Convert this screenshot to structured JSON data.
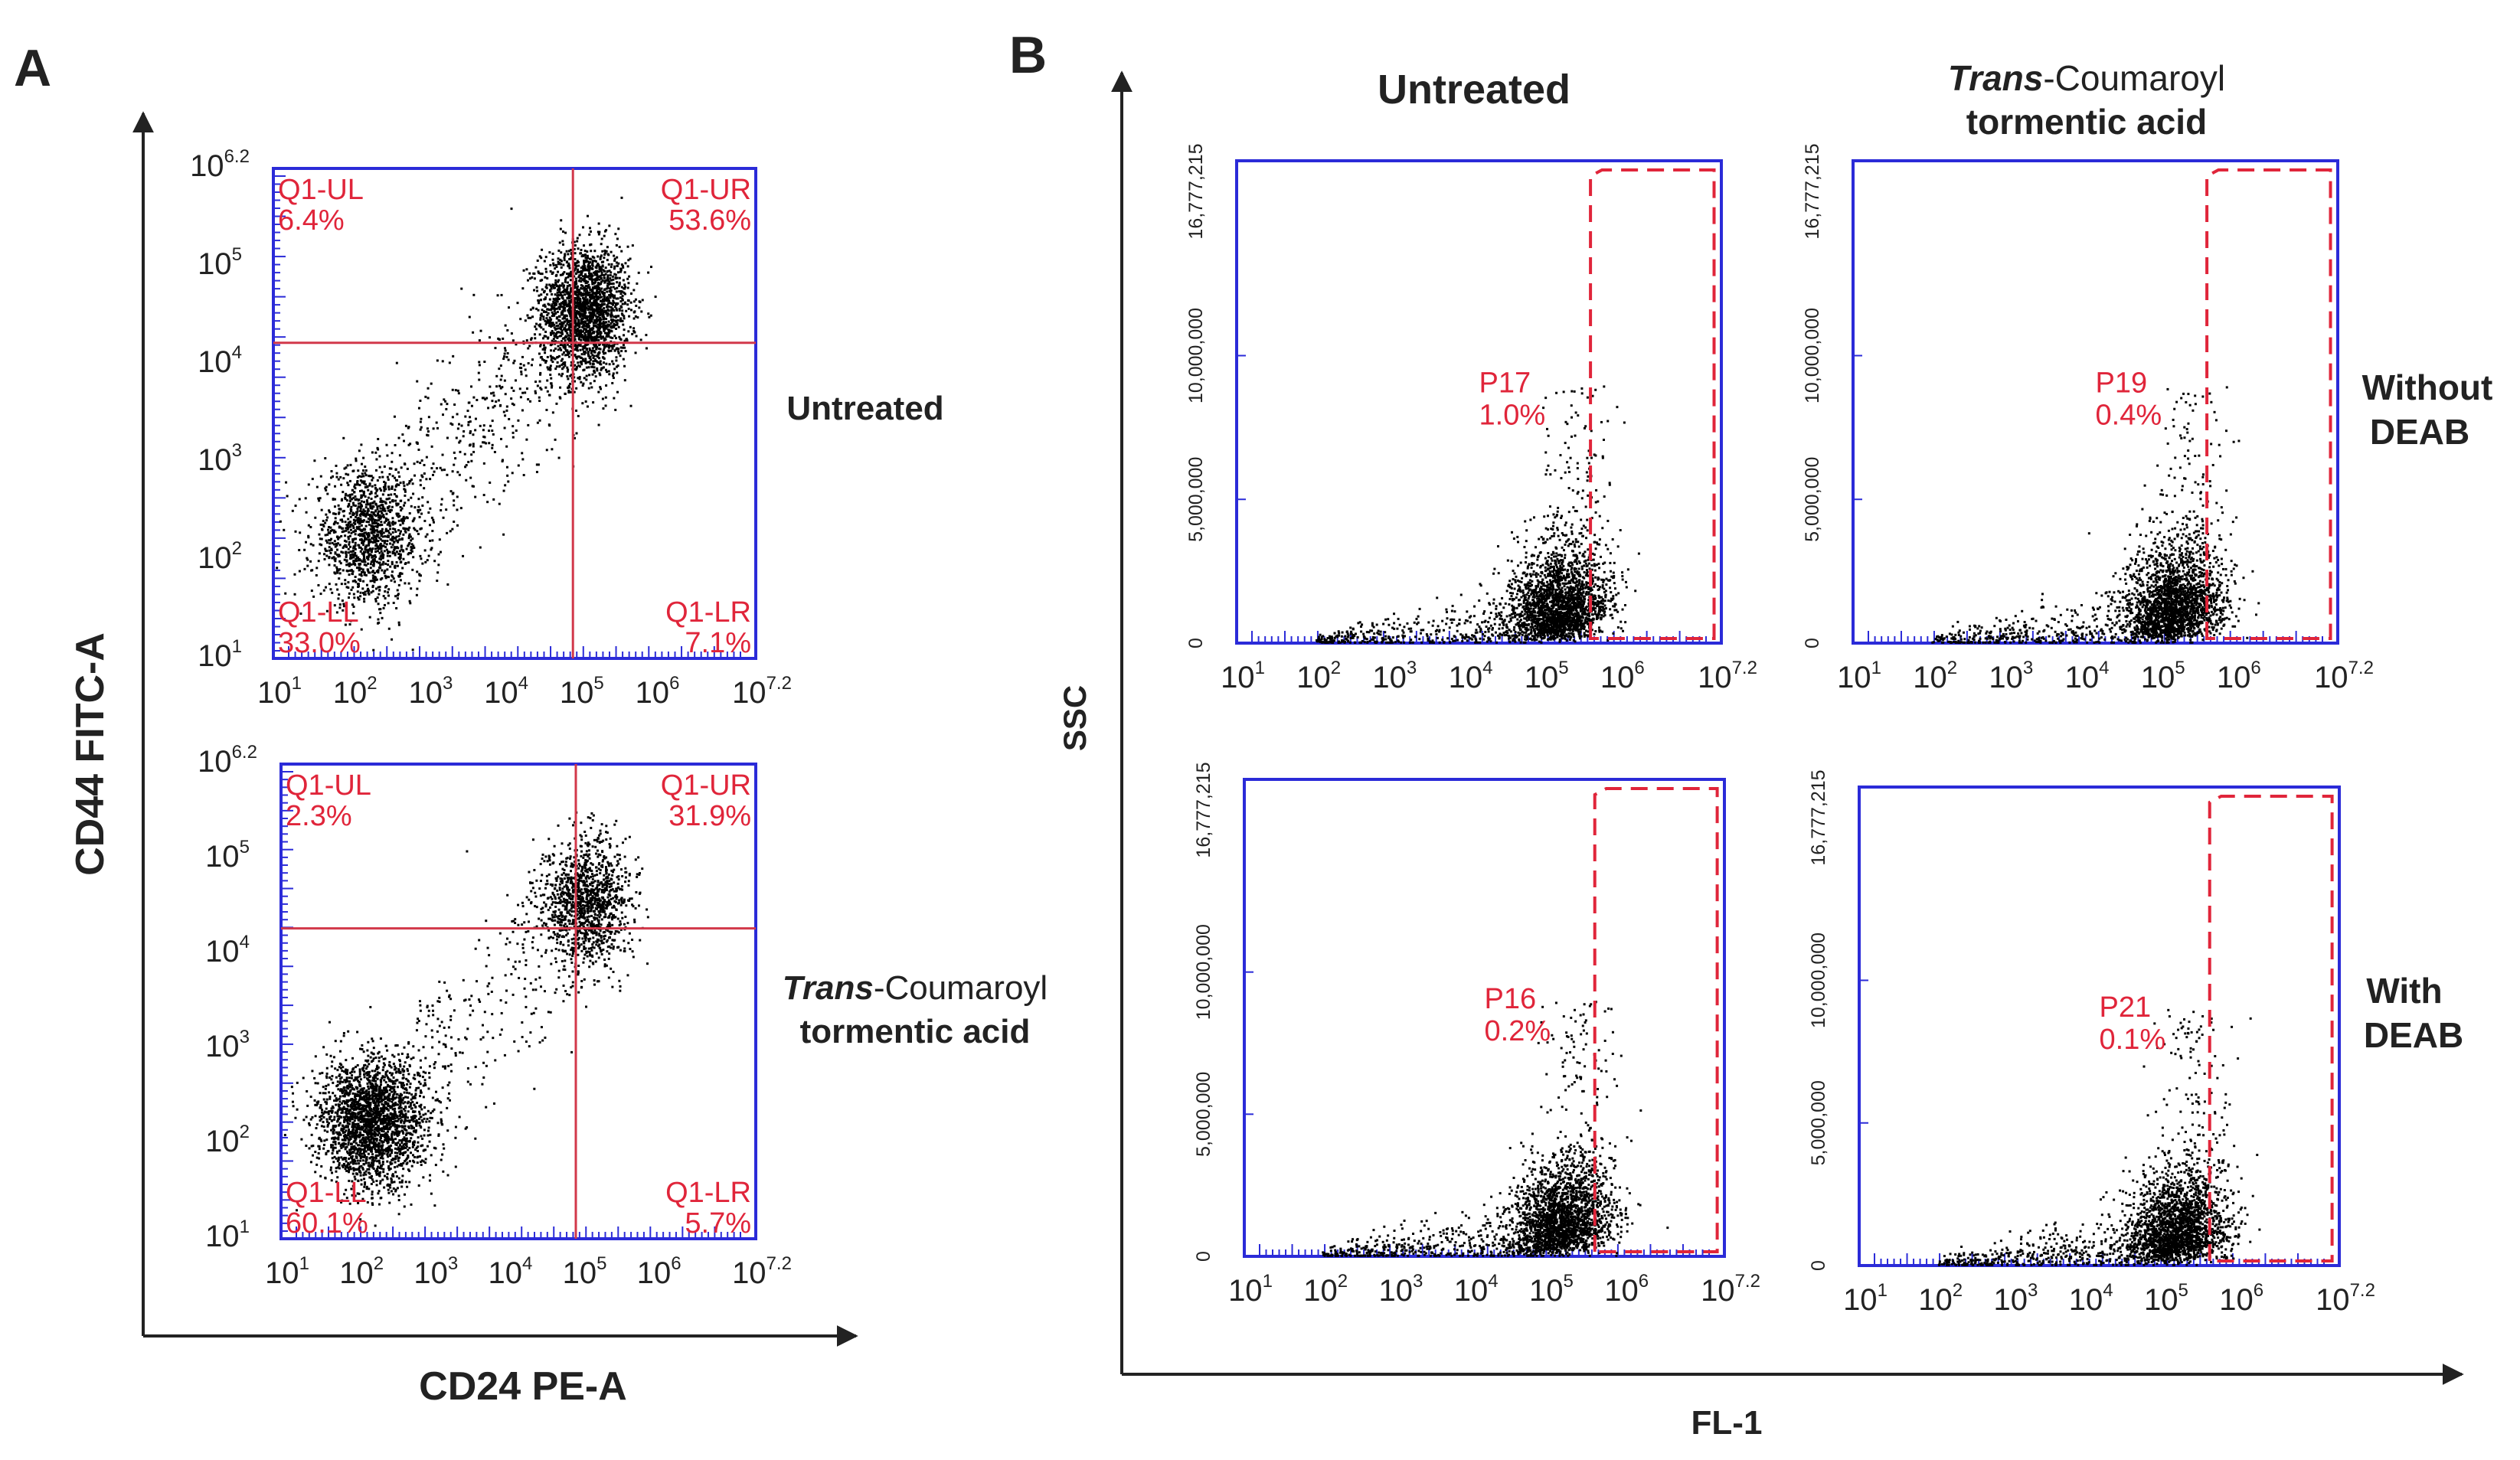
{
  "panel_a": {
    "letter": "A",
    "y_axis_label": "CD44 FITC-A",
    "x_axis_label": "CD24 PE-A",
    "x_ticks": [
      {
        "base": "10",
        "exp": "1"
      },
      {
        "base": "10",
        "exp": "2"
      },
      {
        "base": "10",
        "exp": "3"
      },
      {
        "base": "10",
        "exp": "4"
      },
      {
        "base": "10",
        "exp": "5"
      },
      {
        "base": "10",
        "exp": "6"
      },
      {
        "base": "10",
        "exp": "7.2"
      }
    ],
    "y_ticks": [
      {
        "base": "10",
        "exp": "6.2"
      },
      {
        "base": "10",
        "exp": "5"
      },
      {
        "base": "10",
        "exp": "4"
      },
      {
        "base": "10",
        "exp": "3"
      },
      {
        "base": "10",
        "exp": "2"
      },
      {
        "base": "10",
        "exp": "1"
      }
    ],
    "plots": [
      {
        "condition": "Untreated",
        "quadrants": {
          "ul": {
            "name": "Q1-UL",
            "value": "6.4%"
          },
          "ur": {
            "name": "Q1-UR",
            "value": "53.6%"
          },
          "ll": {
            "name": "Q1-LL",
            "value": "33.0%"
          },
          "lr": {
            "name": "Q1-LR",
            "value": "7.1%"
          }
        }
      },
      {
        "condition_italic": "Trans",
        "condition_rest": "-Coumaroyl",
        "condition_line2": "tormentic acid",
        "quadrants": {
          "ul": {
            "name": "Q1-UL",
            "value": "2.3%"
          },
          "ur": {
            "name": "Q1-UR",
            "value": "31.9%"
          },
          "ll": {
            "name": "Q1-LL",
            "value": "60.1%"
          },
          "lr": {
            "name": "Q1-LR",
            "value": "5.7%"
          }
        }
      }
    ]
  },
  "panel_b": {
    "letter": "B",
    "y_axis_label": "SSC",
    "x_axis_label": "FL-1",
    "col_titles": {
      "left": "Untreated",
      "right_italic": "Trans",
      "right_rest": "-Coumaroyl",
      "right_line2": "tormentic acid"
    },
    "row_labels": [
      {
        "line1": "Without",
        "line2": "DEAB"
      },
      {
        "line1": "With",
        "line2": "DEAB"
      }
    ],
    "x_ticks": [
      {
        "base": "10",
        "exp": "1"
      },
      {
        "base": "10",
        "exp": "2"
      },
      {
        "base": "10",
        "exp": "3"
      },
      {
        "base": "10",
        "exp": "4"
      },
      {
        "base": "10",
        "exp": "5"
      },
      {
        "base": "10",
        "exp": "6"
      },
      {
        "base": "10",
        "exp": "7.2"
      }
    ],
    "y_ticks": [
      "16,777,215",
      "10,000,000",
      "5,000,000",
      "0"
    ],
    "gates": [
      {
        "name": "P17",
        "value": "1.0%"
      },
      {
        "name": "P19",
        "value": "0.4%"
      },
      {
        "name": "P16",
        "value": "0.2%"
      },
      {
        "name": "P21",
        "value": "0.1%"
      }
    ]
  },
  "chart_data": [
    {
      "type": "scatter",
      "title": "A - Untreated",
      "xlabel": "CD24 PE-A",
      "ylabel": "CD44 FITC-A",
      "xlim": [
        1,
        7.2
      ],
      "ylim": [
        1,
        6.2
      ],
      "scale": "log10",
      "quadrant_split": {
        "x": 4.85,
        "y": 4.35
      },
      "quadrants": {
        "Q1-UL": 6.4,
        "Q1-UR": 53.6,
        "Q1-LL": 33.0,
        "Q1-LR": 7.1
      }
    },
    {
      "type": "scatter",
      "title": "A - Trans-Coumaroyl tormentic acid",
      "xlabel": "CD24 PE-A",
      "ylabel": "CD44 FITC-A",
      "xlim": [
        1,
        7.2
      ],
      "ylim": [
        1,
        6.2
      ],
      "scale": "log10",
      "quadrant_split": {
        "x": 4.85,
        "y": 4.4
      },
      "quadrants": {
        "Q1-UL": 2.3,
        "Q1-UR": 31.9,
        "Q1-LL": 60.1,
        "Q1-LR": 5.7
      }
    },
    {
      "type": "scatter",
      "title": "B - Untreated, Without DEAB",
      "xlabel": "FL-1",
      "ylabel": "SSC",
      "xlim": [
        1,
        7.2
      ],
      "ylim": [
        0,
        16777215
      ],
      "gate": {
        "name": "P17",
        "percent": 1.0
      }
    },
    {
      "type": "scatter",
      "title": "B - Trans-Coumaroyl tormentic acid, Without DEAB",
      "xlabel": "FL-1",
      "ylabel": "SSC",
      "xlim": [
        1,
        7.2
      ],
      "ylim": [
        0,
        16777215
      ],
      "gate": {
        "name": "P19",
        "percent": 0.4
      }
    },
    {
      "type": "scatter",
      "title": "B - Untreated, With DEAB",
      "xlabel": "FL-1",
      "ylabel": "SSC",
      "xlim": [
        1,
        7.2
      ],
      "ylim": [
        0,
        16777215
      ],
      "gate": {
        "name": "P16",
        "percent": 0.2
      }
    },
    {
      "type": "scatter",
      "title": "B - Trans-Coumaroyl tormentic acid, With DEAB",
      "xlabel": "FL-1",
      "ylabel": "SSC",
      "xlim": [
        1,
        7.2
      ],
      "ylim": [
        0,
        16777215
      ],
      "gate": {
        "name": "P21",
        "percent": 0.1
      }
    }
  ]
}
